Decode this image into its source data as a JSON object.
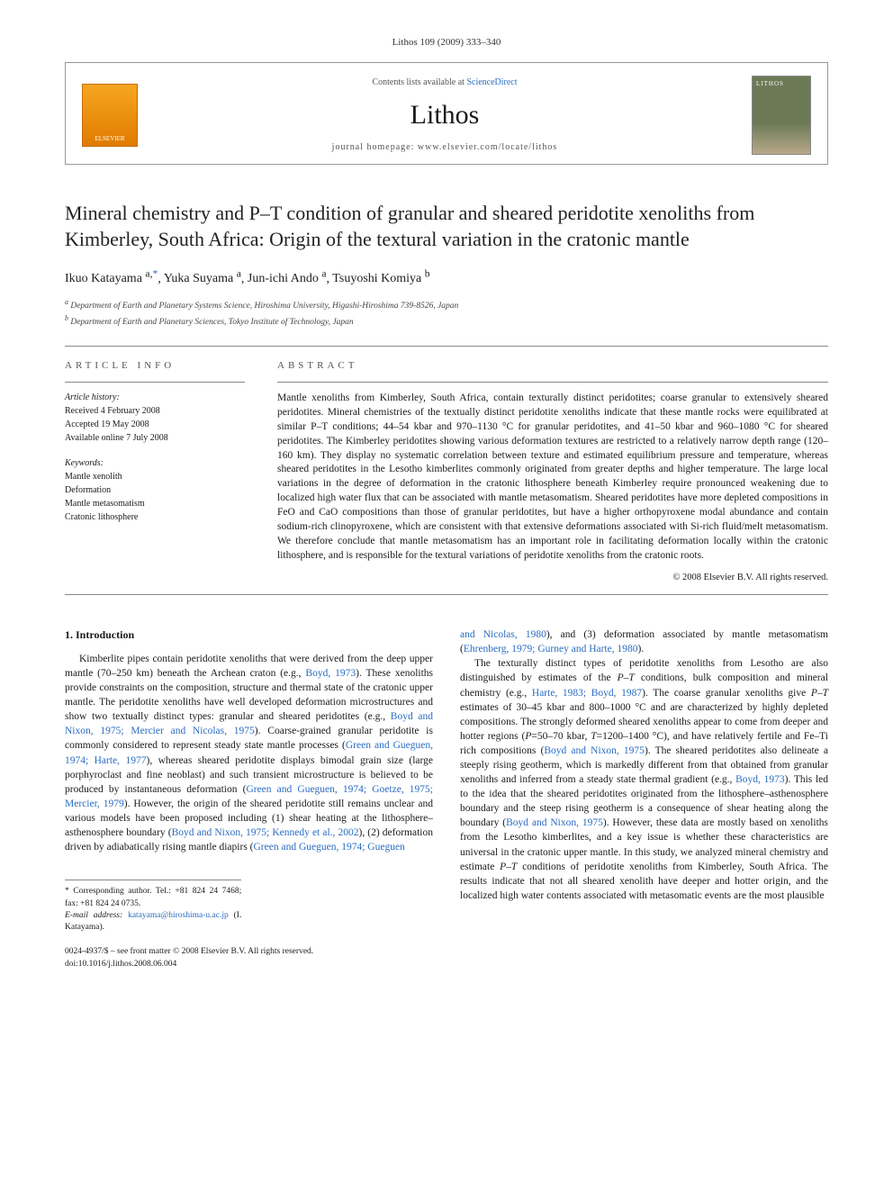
{
  "running_head": "Lithos 109 (2009) 333–340",
  "masthead": {
    "avail_prefix": "Contents lists available at ",
    "avail_link": "ScienceDirect",
    "journal_name": "Lithos",
    "homepage_prefix": "journal homepage: ",
    "homepage_url": "www.elsevier.com/locate/lithos",
    "elsevier_label": "ELSEVIER"
  },
  "title": "Mineral chemistry and P–T condition of granular and sheared peridotite xenoliths from Kimberley, South Africa: Origin of the textural variation in the cratonic mantle",
  "authors": [
    {
      "name": "Ikuo Katayama",
      "aff": "a,",
      "corr": "*"
    },
    {
      "name": "Yuka Suyama",
      "aff": "a",
      "corr": ""
    },
    {
      "name": "Jun-ichi Ando",
      "aff": "a",
      "corr": ""
    },
    {
      "name": "Tsuyoshi Komiya",
      "aff": "b",
      "corr": ""
    }
  ],
  "affiliations": [
    {
      "sup": "a",
      "text": "Department of Earth and Planetary Systems Science, Hiroshima University, Higashi-Hiroshima 739-8526, Japan"
    },
    {
      "sup": "b",
      "text": "Department of Earth and Planetary Sciences, Tokyo Institute of Technology, Japan"
    }
  ],
  "article_info": {
    "heading": "article info",
    "history_label": "Article history:",
    "received": "Received 4 February 2008",
    "accepted": "Accepted 19 May 2008",
    "online": "Available online 7 July 2008",
    "keywords_label": "Keywords:",
    "keywords": [
      "Mantle xenolith",
      "Deformation",
      "Mantle metasomatism",
      "Cratonic lithosphere"
    ]
  },
  "abstract": {
    "heading": "abstract",
    "text": "Mantle xenoliths from Kimberley, South Africa, contain texturally distinct peridotites; coarse granular to extensively sheared peridotites. Mineral chemistries of the textually distinct peridotite xenoliths indicate that these mantle rocks were equilibrated at similar P–T conditions; 44–54 kbar and 970–1130 °C for granular peridotites, and 41–50 kbar and 960–1080 °C for sheared peridotites. The Kimberley peridotites showing various deformation textures are restricted to a relatively narrow depth range (120–160 km). They display no systematic correlation between texture and estimated equilibrium pressure and temperature, whereas sheared peridotites in the Lesotho kimberlites commonly originated from greater depths and higher temperature. The large local variations in the degree of deformation in the cratonic lithosphere beneath Kimberley require pronounced weakening due to localized high water flux that can be associated with mantle metasomatism. Sheared peridotites have more depleted compositions in FeO and CaO compositions than those of granular peridotites, but have a higher orthopyroxene modal abundance and contain sodium-rich clinopyroxene, which are consistent with that extensive deformations associated with Si-rich fluid/melt metasomatism. We therefore conclude that mantle metasomatism has an important role in facilitating deformation locally within the cratonic lithosphere, and is responsible for the textural variations of peridotite xenoliths from the cratonic roots.",
    "copyright": "© 2008 Elsevier B.V. All rights reserved."
  },
  "section1": {
    "heading": "1. Introduction",
    "col1_html": "Kimberlite pipes contain peridotite xenoliths that were derived from the deep upper mantle (70–250 km) beneath the Archean craton (e.g., <a href='#'>Boyd, 1973</a>). These xenoliths provide constraints on the composition, structure and thermal state of the cratonic upper mantle. The peridotite xenoliths have well developed deformation microstructures and show two textually distinct types: granular and sheared peridotites (e.g., <a href='#'>Boyd and Nixon, 1975; Mercier and Nicolas, 1975</a>). Coarse-grained granular peridotite is commonly considered to represent steady state mantle processes (<a href='#'>Green and Gueguen, 1974; Harte, 1977</a>), whereas sheared peridotite displays bimodal grain size (large porphyroclast and fine neoblast) and such transient microstructure is believed to be produced by instantaneous deformation (<a href='#'>Green and Gueguen, 1974; Goetze, 1975; Mercier, 1979</a>). However, the origin of the sheared peridotite still remains unclear and various models have been proposed including (1) shear heating at the lithosphere–asthenosphere boundary (<a href='#'>Boyd and Nixon, 1975; Kennedy et al., 2002</a>), (2) deformation driven by adiabatically rising mantle diapirs (<a href='#'>Green and Gueguen, 1974; Gueguen</a>",
    "col2_top_html": "<a href='#'>and Nicolas, 1980</a>), and (3) deformation associated by mantle metasomatism (<a href='#'>Ehrenberg, 1979; Gurney and Harte, 1980</a>).",
    "col2_html": "The texturally distinct types of peridotite xenoliths from Lesotho are also distinguished by estimates of the <i>P–T</i> conditions, bulk composition and mineral chemistry (e.g., <a href='#'>Harte, 1983; Boyd, 1987</a>). The coarse granular xenoliths give <i>P–T</i> estimates of 30–45 kbar and 800–1000 °C and are characterized by highly depleted compositions. The strongly deformed sheared xenoliths appear to come from deeper and hotter regions (<i>P</i>=50–70 kbar, <i>T</i>=1200–1400 °C), and have relatively fertile and Fe–Ti rich compositions (<a href='#'>Boyd and Nixon, 1975</a>). The sheared peridotites also delineate a steeply rising geotherm, which is markedly different from that obtained from granular xenoliths and inferred from a steady state thermal gradient (e.g., <a href='#'>Boyd, 1973</a>). This led to the idea that the sheared peridotites originated from the lithosphere–asthenosphere boundary and the steep rising geotherm is a consequence of shear heating along the boundary (<a href='#'>Boyd and Nixon, 1975</a>). However, these data are mostly based on xenoliths from the Lesotho kimberlites, and a key issue is whether these characteristics are universal in the cratonic upper mantle. In this study, we analyzed mineral chemistry and estimate <i>P–T</i> conditions of peridotite xenoliths from Kimberley, South Africa. The results indicate that not all sheared xenolith have deeper and hotter origin, and the localized high water contents associated with metasomatic events are the most plausible"
  },
  "footnotes": {
    "corr_text": "Corresponding author. Tel.: +81 824 24 7468; fax: +81 824 24 0735.",
    "email_label": "E-mail address:",
    "email": "katayama@hiroshima-u.ac.jp",
    "email_who": "(I. Katayama).",
    "copy1": "0024-4937/$ – see front matter © 2008 Elsevier B.V. All rights reserved.",
    "doi": "doi:10.1016/j.lithos.2008.06.004"
  },
  "colors": {
    "link": "#2a6cc2",
    "rule": "#888888",
    "text": "#1a1a1a"
  }
}
